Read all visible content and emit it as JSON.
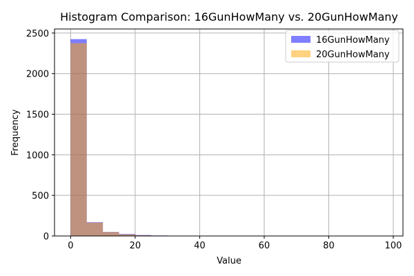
{
  "chart_data": {
    "type": "bar",
    "title": "Histogram Comparison: 16GunHowMany vs. 20GunHowMany",
    "xlabel": "Value",
    "ylabel": "Frequency",
    "xlim": [
      -5,
      103
    ],
    "ylim": [
      0,
      2550
    ],
    "xticks": [
      0,
      20,
      40,
      60,
      80,
      100
    ],
    "yticks": [
      0,
      500,
      1000,
      1500,
      2000,
      2500
    ],
    "grid": true,
    "legend_position": "top-right",
    "bin_edges": [
      0,
      5,
      10,
      15,
      20,
      25,
      30,
      35,
      40,
      45,
      50,
      55,
      60,
      65,
      70,
      75,
      80,
      85,
      90,
      95,
      100
    ],
    "series": [
      {
        "name": "16GunHowMany",
        "color": "#0000ff",
        "alpha": 0.5,
        "values": [
          2425,
          170,
          50,
          25,
          12,
          6,
          4,
          0,
          2,
          0,
          0,
          0,
          0,
          0,
          0,
          0,
          0,
          0,
          0,
          0
        ]
      },
      {
        "name": "20GunHowMany",
        "color": "#ffa500",
        "alpha": 0.5,
        "values": [
          2375,
          165,
          48,
          20,
          8,
          3,
          2,
          0,
          3,
          0,
          0,
          0,
          0,
          0,
          0,
          0,
          0,
          0,
          0,
          2
        ]
      }
    ]
  }
}
